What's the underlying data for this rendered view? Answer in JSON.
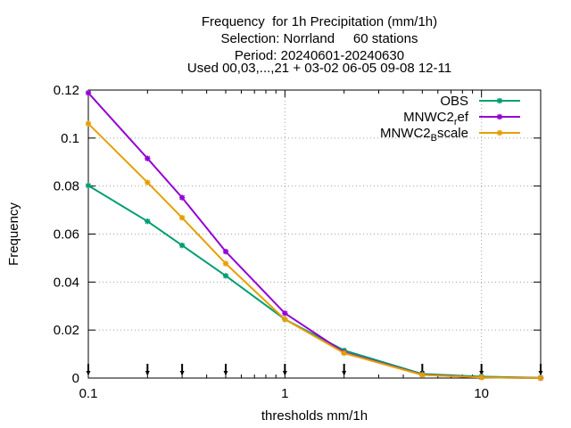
{
  "chart_data": {
    "type": "line",
    "title_lines": [
      "Frequency  for 1h Precipitation (mm/1h)",
      "Selection: Norrland     60 stations",
      "Period: 20240601-20240630",
      "Used 00,03,...,21 + 03-02 06-05 09-08 12-11"
    ],
    "xlabel": "thresholds mm/1h",
    "ylabel": "Frequency",
    "xscale": "log",
    "xlim": [
      0.1,
      20
    ],
    "ylim": [
      0,
      0.12
    ],
    "x_ticks": [
      {
        "value": 0.1,
        "label": "0.1"
      },
      {
        "value": 1,
        "label": "1"
      },
      {
        "value": 10,
        "label": "10"
      }
    ],
    "y_ticks": [
      {
        "value": 0,
        "label": "0"
      },
      {
        "value": 0.02,
        "label": "0.02"
      },
      {
        "value": 0.04,
        "label": "0.04"
      },
      {
        "value": 0.06,
        "label": "0.06"
      },
      {
        "value": 0.08,
        "label": "0.08"
      },
      {
        "value": 0.1,
        "label": "0.1"
      },
      {
        "value": 0.12,
        "label": "0.12"
      }
    ],
    "threshold_marks": [
      0.1,
      0.2,
      0.3,
      0.5,
      1,
      2,
      5,
      10,
      20
    ],
    "grid": true,
    "legend_position": "top-right",
    "x": [
      0.1,
      0.2,
      0.3,
      0.5,
      1,
      2,
      5,
      10,
      20
    ],
    "series": [
      {
        "name": "OBS",
        "name_parts": [
          "OBS",
          "",
          ""
        ],
        "color": "#009e73",
        "values": [
          0.0802,
          0.0653,
          0.0553,
          0.0426,
          0.0245,
          0.0115,
          0.0017,
          0.0006,
          0.0001
        ]
      },
      {
        "name": "MNWC2_ref",
        "name_parts": [
          "MNWC2",
          "r",
          "ef"
        ],
        "color": "#9400d3",
        "values": [
          0.1188,
          0.0915,
          0.0752,
          0.0527,
          0.027,
          0.0107,
          0.0014,
          0.0003,
          0.0
        ]
      },
      {
        "name": "MNWC2_Bscale",
        "name_parts": [
          "MNWC2",
          "B",
          "scale"
        ],
        "color": "#e69f00",
        "values": [
          0.106,
          0.0815,
          0.0668,
          0.0477,
          0.0245,
          0.0104,
          0.0013,
          0.0003,
          0.0
        ]
      }
    ]
  }
}
